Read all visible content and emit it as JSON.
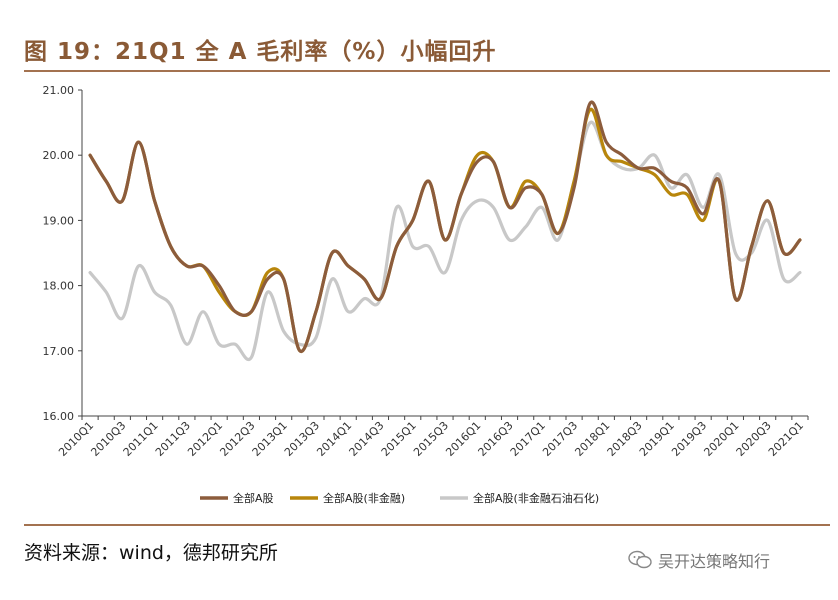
{
  "title": "图 19：21Q1 全 A 毛利率（%）小幅回升",
  "source": "资料来源：wind，德邦研究所",
  "watermark": "吴开达策略知行",
  "colors": {
    "brand": "#8a5a36",
    "rule": "#a37250"
  },
  "chart_data": {
    "type": "line",
    "title": "21Q1 全 A 毛利率（%）小幅回升",
    "xlabel": "",
    "ylabel": "",
    "ylim": [
      16.0,
      21.0
    ],
    "yticks": [
      "21.00",
      "20.00",
      "19.00",
      "18.00",
      "17.00",
      "16.00"
    ],
    "categories": [
      "2010Q1",
      "2010Q2",
      "2010Q3",
      "2010Q4",
      "2011Q1",
      "2011Q2",
      "2011Q3",
      "2011Q4",
      "2012Q1",
      "2012Q2",
      "2012Q3",
      "2012Q4",
      "2013Q1",
      "2013Q2",
      "2013Q3",
      "2013Q4",
      "2014Q1",
      "2014Q2",
      "2014Q3",
      "2014Q4",
      "2015Q1",
      "2015Q2",
      "2015Q3",
      "2015Q4",
      "2016Q1",
      "2016Q2",
      "2016Q3",
      "2016Q4",
      "2017Q1",
      "2017Q2",
      "2017Q3",
      "2017Q4",
      "2018Q1",
      "2018Q2",
      "2018Q3",
      "2018Q4",
      "2019Q1",
      "2019Q2",
      "2019Q3",
      "2019Q4",
      "2020Q1",
      "2020Q2",
      "2020Q3",
      "2020Q4",
      "2021Q1"
    ],
    "tick_labels": [
      "2010Q1",
      "2010Q3",
      "2011Q1",
      "2011Q3",
      "2012Q1",
      "2012Q3",
      "2013Q1",
      "2013Q3",
      "2014Q1",
      "2014Q3",
      "2015Q1",
      "2015Q3",
      "2016Q1",
      "2016Q3",
      "2017Q1",
      "2017Q3",
      "2018Q1",
      "2018Q3",
      "2019Q1",
      "2019Q3",
      "2020Q1",
      "2020Q3",
      "2021Q1"
    ],
    "legend_position": "bottom",
    "series": [
      {
        "name": "全部A股",
        "color": "#8c5c3c",
        "values": [
          20.0,
          19.6,
          19.3,
          20.2,
          19.3,
          18.6,
          18.3,
          18.3,
          18.0,
          17.6,
          17.6,
          18.1,
          18.1,
          17.0,
          17.6,
          18.5,
          18.3,
          18.1,
          17.8,
          18.6,
          19.0,
          19.6,
          18.7,
          19.4,
          19.9,
          19.9,
          19.2,
          19.5,
          19.4,
          18.8,
          19.5,
          20.8,
          20.2,
          20.0,
          19.8,
          19.8,
          19.6,
          19.5,
          19.1,
          19.6,
          17.8,
          18.6,
          19.3,
          18.5,
          18.7
        ]
      },
      {
        "name": "全部A股(非金融)",
        "color": "#b8860b",
        "values": [
          20.0,
          19.6,
          19.3,
          20.2,
          19.3,
          18.6,
          18.3,
          18.3,
          17.9,
          17.6,
          17.6,
          18.2,
          18.1,
          17.0,
          17.6,
          18.5,
          18.3,
          18.1,
          17.8,
          18.6,
          19.0,
          19.6,
          18.7,
          19.4,
          20.0,
          19.9,
          19.2,
          19.6,
          19.4,
          18.8,
          19.6,
          20.7,
          20.0,
          19.9,
          19.8,
          19.7,
          19.4,
          19.4,
          19.0,
          19.6,
          17.8,
          18.6,
          19.3,
          18.5,
          18.7
        ]
      },
      {
        "name": "全部A股(非金融石油石化)",
        "color": "#c8c8c8",
        "values": [
          18.2,
          17.9,
          17.5,
          18.3,
          17.9,
          17.7,
          17.1,
          17.6,
          17.1,
          17.1,
          16.9,
          17.9,
          17.3,
          17.1,
          17.2,
          18.1,
          17.6,
          17.8,
          17.8,
          19.2,
          18.6,
          18.6,
          18.2,
          19.0,
          19.3,
          19.2,
          18.7,
          18.9,
          19.2,
          18.7,
          19.6,
          20.5,
          20.0,
          19.8,
          19.8,
          20.0,
          19.5,
          19.7,
          19.2,
          19.7,
          18.5,
          18.5,
          19.0,
          18.1,
          18.2
        ]
      }
    ]
  }
}
